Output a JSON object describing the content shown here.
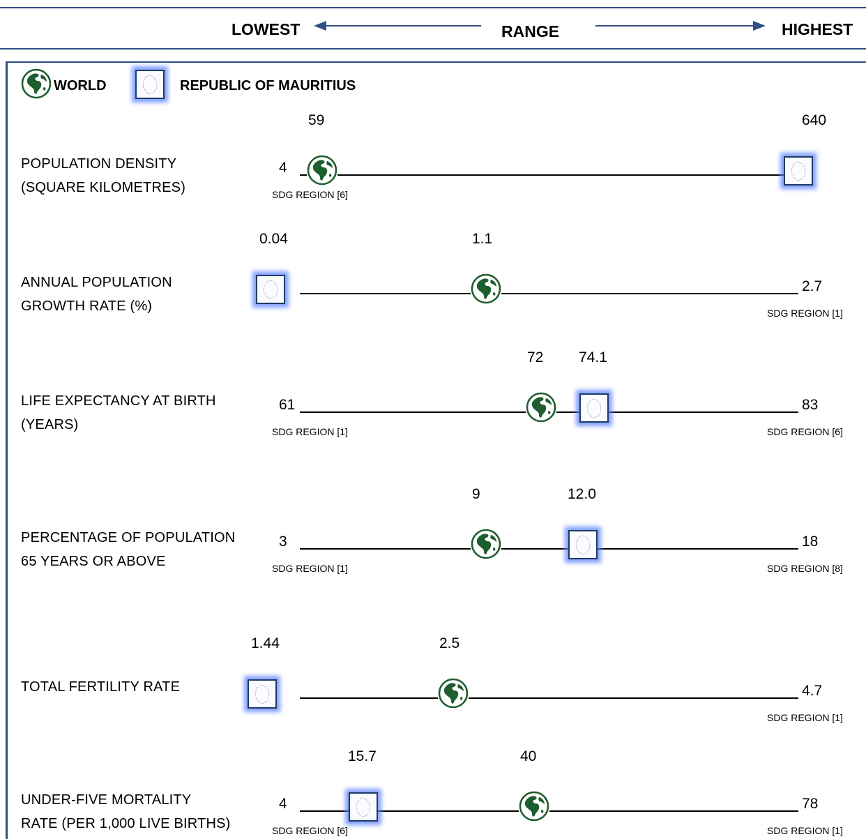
{
  "header": {
    "lowest_label": "LOWEST",
    "range_label": "RANGE",
    "highest_label": "HIGHEST"
  },
  "legend": {
    "world_label": "WORLD",
    "mauritius_label": "REPUBLIC OF MAURITIUS",
    "world_icon": "globe-icon",
    "mauritius_icon": "mauritius-map-icon"
  },
  "colors": {
    "accent_blue": "#2f4f86",
    "globe_green": "#1e5e2e",
    "mauritius_glow": "#5a82ff"
  },
  "chart_data": {
    "type": "range-indicator",
    "title": "",
    "indicators": [
      {
        "label_line1": "POPULATION DENSITY",
        "label_line2": "(SQUARE KILOMETRES)",
        "min": "4",
        "min_note": "SDG REGION [6]",
        "max": "640",
        "max_note": "",
        "world": "59",
        "mauritius": "640"
      },
      {
        "label_line1": "ANNUAL POPULATION",
        "label_line2": "GROWTH RATE (%)",
        "min": "0.04",
        "min_note": "",
        "max": "2.7",
        "max_note": "SDG REGION [1]",
        "world": "1.1",
        "mauritius": "0.04"
      },
      {
        "label_line1": "LIFE EXPECTANCY AT BIRTH",
        "label_line2": "(YEARS)",
        "min": "61",
        "min_note": "SDG REGION [1]",
        "max": "83",
        "max_note": "SDG REGION [6]",
        "world": "72",
        "mauritius": "74.1"
      },
      {
        "label_line1": "PERCENTAGE OF POPULATION",
        "label_line2": "65 YEARS OR ABOVE",
        "min": "3",
        "min_note": "SDG REGION [1]",
        "max": "18",
        "max_note": "SDG REGION [8]",
        "world": "9",
        "mauritius": "12.0"
      },
      {
        "label_line1": "TOTAL FERTILITY RATE",
        "label_line2": "",
        "min": "1.44",
        "min_note": "",
        "max": "4.7",
        "max_note": "SDG REGION [1]",
        "world": "2.5",
        "mauritius": "1.44"
      },
      {
        "label_line1": "UNDER-FIVE MORTALITY",
        "label_line2": "RATE (PER 1,000 LIVE BIRTHS)",
        "min": "4",
        "min_note": "SDG REGION [6]",
        "max": "78",
        "max_note": "SDG REGION [1]",
        "world": "40",
        "mauritius": "15.7"
      }
    ]
  }
}
